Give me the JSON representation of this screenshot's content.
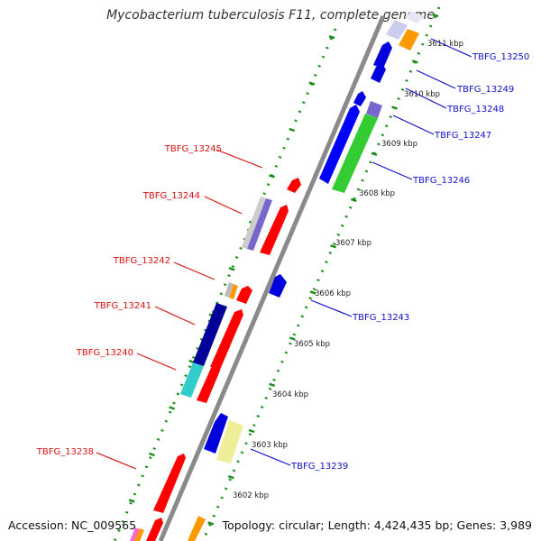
{
  "title": "Mycobacterium tuberculosis F11, complete genome",
  "accession": "Accession: NC_009565",
  "summary": "Topology: circular; Length: 4,424,435 bp; Genes: 3,989",
  "colors": {
    "backbone": "#8a8a8a",
    "dots": "#1a8f1a",
    "left_label": "#dd1111",
    "right_label": "#1111cc",
    "tick_text": "#222222"
  },
  "ticks": [
    "3602 kbp",
    "3603 kbp",
    "3604 kbp",
    "3605 kbp",
    "3606 kbp",
    "3607 kbp",
    "3608 kbp",
    "3609 kbp",
    "3610 kbp",
    "3611 kbp"
  ],
  "left_genes": [
    "TBFG_13245",
    "TBFG_13244",
    "TBFG_13242",
    "TBFG_13241",
    "TBFG_13240",
    "TBFG_13238"
  ],
  "right_genes": [
    "TBFG_13250",
    "TBFG_13249",
    "TBFG_13248",
    "TBFG_13247",
    "TBFG_13246",
    "TBFG_13243",
    "TBFG_13239"
  ]
}
